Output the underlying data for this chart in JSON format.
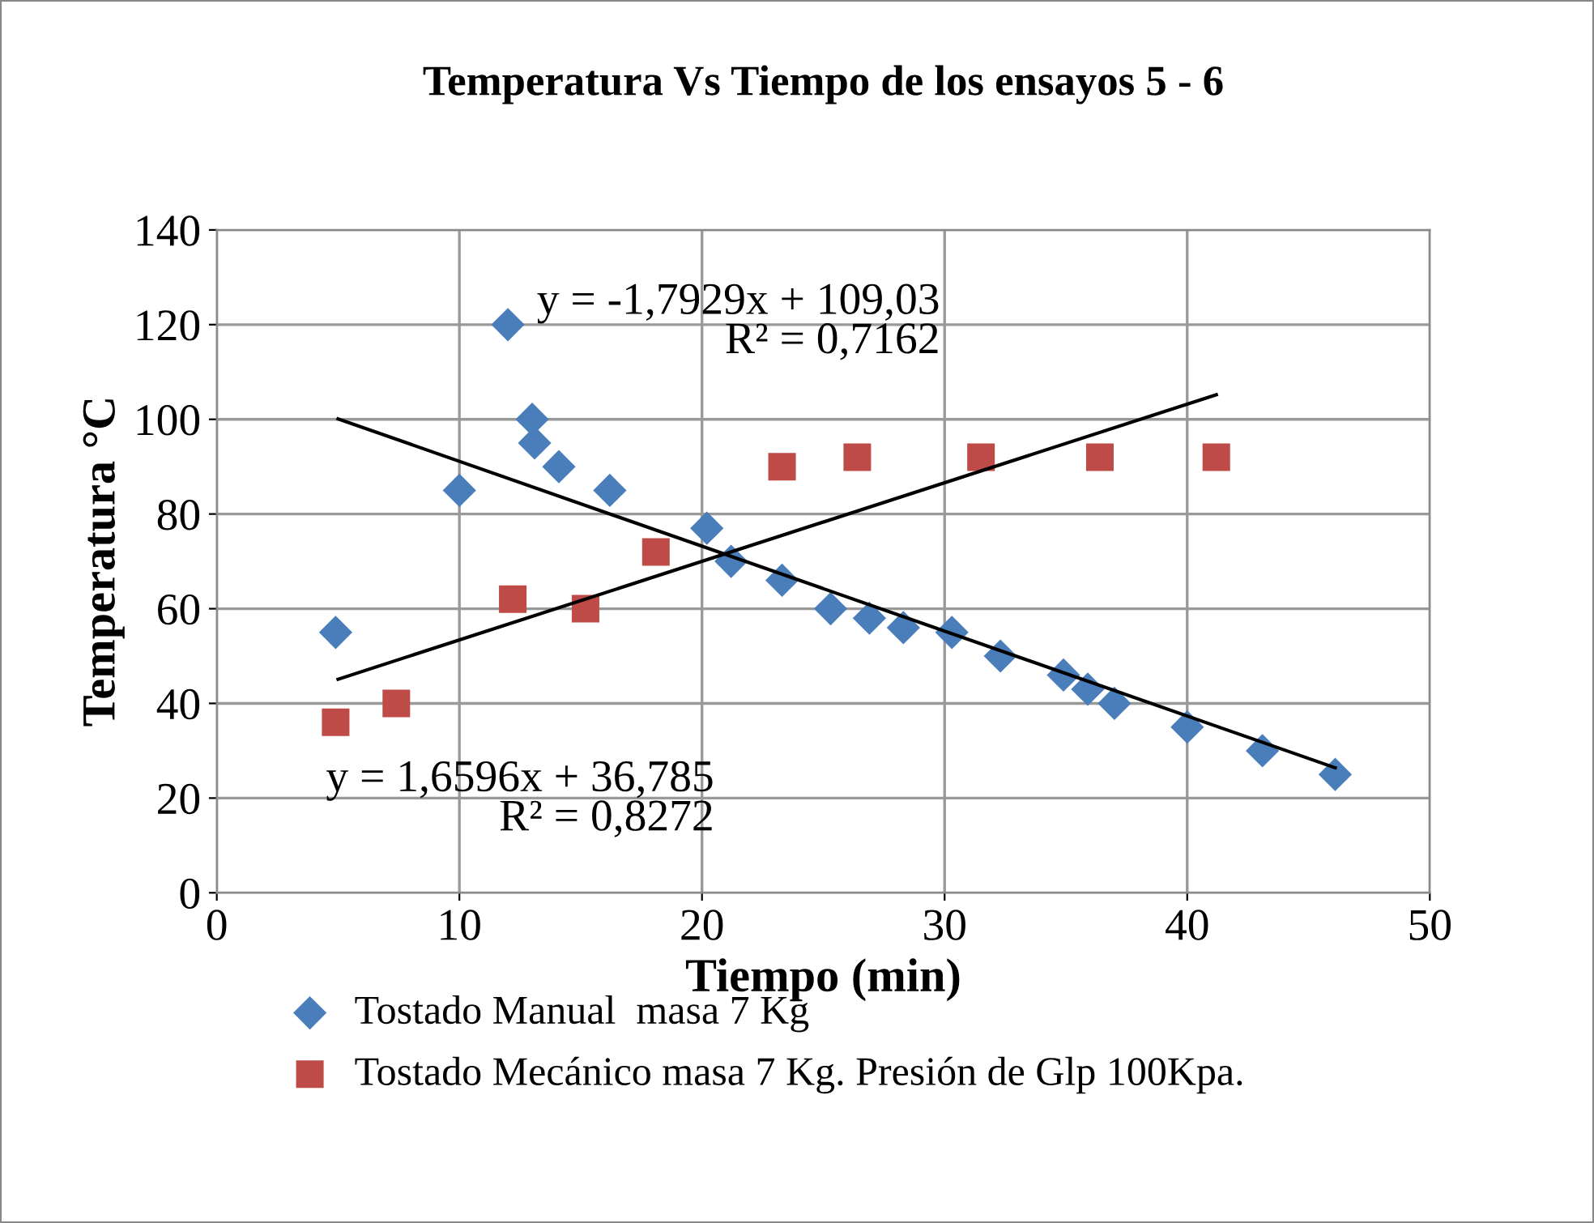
{
  "chart_data": {
    "type": "scatter",
    "title": "Temperatura Vs Tiempo de los ensayos 5 - 6",
    "xlabel": "Tiempo (min)",
    "ylabel": "Temperatura °C",
    "series": [
      {
        "name": "Tostado Manual  masa 7 Kg",
        "color": "#4a7ebb",
        "marker": "diamond",
        "x": [
          4.9,
          10,
          12,
          13,
          13.1,
          14.1,
          16.2,
          20.2,
          21.2,
          23.3,
          25.3,
          26.9,
          28.3,
          30.3,
          32.3,
          34.9,
          35.9,
          37.0,
          40,
          43.1,
          46.1
        ],
        "values": [
          55,
          85,
          120,
          100,
          95,
          90,
          85,
          77,
          70,
          66,
          60,
          58,
          56,
          55,
          50,
          46,
          43,
          40,
          35,
          30,
          25
        ]
      },
      {
        "name": "Tostado Mecánico masa 7 Kg. Presión de Glp 100Kpa.",
        "color": "#be4b48",
        "marker": "square",
        "x": [
          4.9,
          7.4,
          12.2,
          15.2,
          18.1,
          23.3,
          26.4,
          31.5,
          36.4,
          41.2
        ],
        "values": [
          36,
          40,
          62,
          60,
          72,
          90,
          92,
          92,
          92,
          92
        ]
      },
      {
        "type": "line",
        "color": "#000000",
        "marker": "none",
        "x": [
          5,
          46.1
        ],
        "values": [
          100.1,
          26.4
        ]
      },
      {
        "type": "line",
        "color": "#000000",
        "marker": "none",
        "x": [
          5,
          41.2
        ],
        "values": [
          45.1,
          105.2
        ]
      }
    ],
    "annotations": [
      "y = -1,7929x + 109,03\nR² = 0,7162",
      "y = 1,6596x + 36,785\nR² = 0,8272"
    ],
    "xlim": [
      0,
      50
    ],
    "xticks": [
      0,
      10,
      20,
      30,
      40,
      50
    ],
    "ylim": [
      0,
      140
    ],
    "yticks": [
      0,
      20,
      40,
      60,
      80,
      100,
      120,
      140
    ],
    "grid": true,
    "legend": "bottom"
  }
}
